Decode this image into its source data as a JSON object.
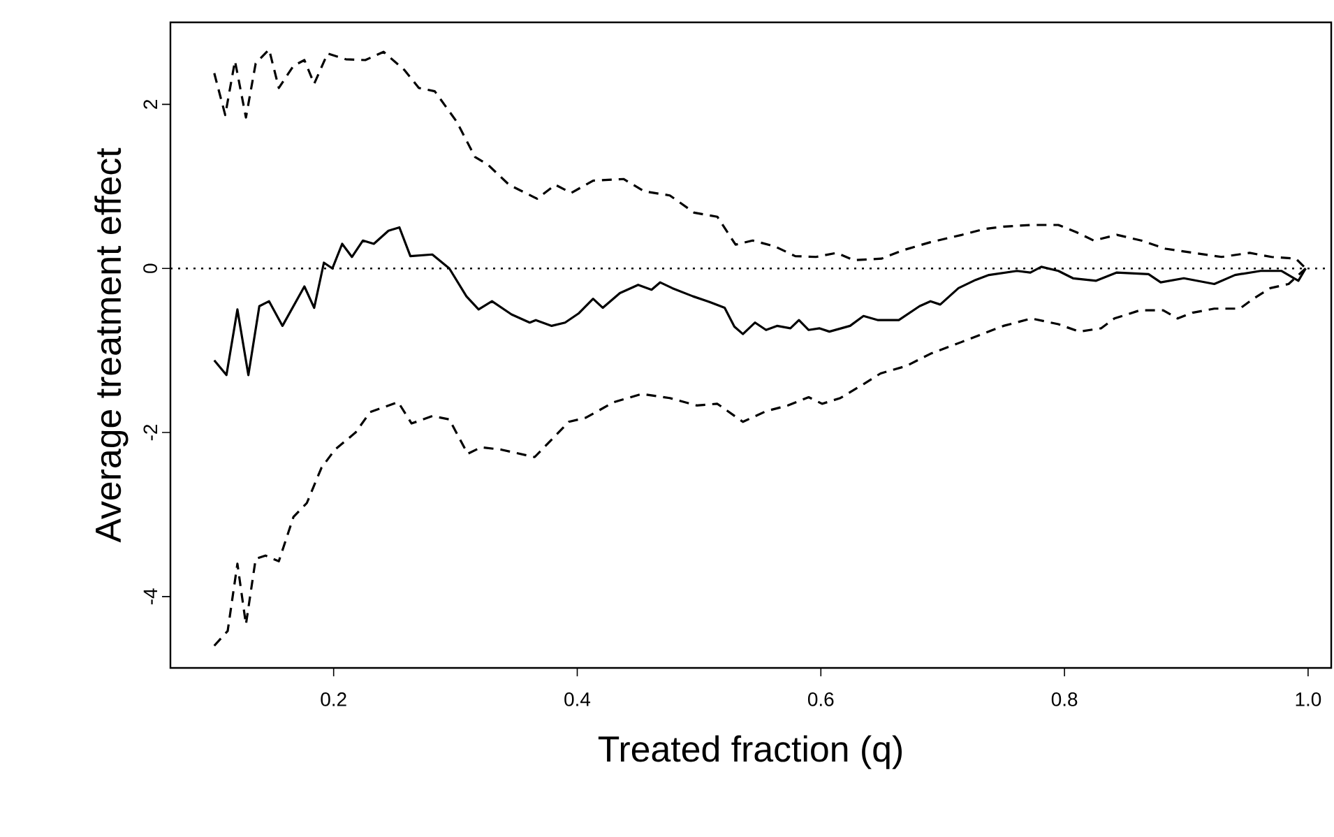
{
  "chart_data": {
    "type": "line",
    "xlabel": "Treated fraction (q)",
    "ylabel": "Average treatment effect",
    "xlim": [
      0.066,
      1.019
    ],
    "ylim": [
      -4.87,
      3.0
    ],
    "xticks": [
      0.2,
      0.4,
      0.6,
      0.8,
      {
        "value": 1,
        "label": "1.0"
      }
    ],
    "yticks": [
      -4,
      -2,
      0,
      2
    ],
    "ref_lines": [
      {
        "axis": "y",
        "value": 0,
        "line_style": "dotted",
        "color": "#000000"
      }
    ],
    "series": [
      {
        "color": "#000000",
        "line_style": "solid",
        "x": [
          0.102,
          0.112,
          0.121,
          0.13,
          0.139,
          0.147,
          0.158,
          0.176,
          0.184,
          0.192,
          0.199,
          0.207,
          0.215,
          0.224,
          0.233,
          0.245,
          0.254,
          0.263,
          0.281,
          0.295,
          0.309,
          0.319,
          0.33,
          0.346,
          0.361,
          0.366,
          0.379,
          0.39,
          0.401,
          0.413,
          0.421,
          0.435,
          0.45,
          0.461,
          0.468,
          0.478,
          0.495,
          0.507,
          0.521,
          0.529,
          0.536,
          0.546,
          0.555,
          0.564,
          0.575,
          0.582,
          0.59,
          0.599,
          0.607,
          0.624,
          0.635,
          0.647,
          0.664,
          0.681,
          0.69,
          0.698,
          0.713,
          0.727,
          0.738,
          0.761,
          0.772,
          0.781,
          0.795,
          0.807,
          0.826,
          0.843,
          0.869,
          0.879,
          0.898,
          0.923,
          0.94,
          0.961,
          0.978,
          0.992,
          0.998
        ],
        "values": [
          -1.12,
          -1.3,
          -0.5,
          -1.3,
          -0.46,
          -0.4,
          -0.7,
          -0.22,
          -0.48,
          0.07,
          0,
          0.3,
          0.14,
          0.34,
          0.3,
          0.46,
          0.5,
          0.15,
          0.17,
          0,
          -0.34,
          -0.5,
          -0.4,
          -0.56,
          -0.66,
          -0.63,
          -0.7,
          -0.66,
          -0.55,
          -0.37,
          -0.48,
          -0.3,
          -0.2,
          -0.26,
          -0.17,
          -0.24,
          -0.34,
          -0.4,
          -0.48,
          -0.71,
          -0.8,
          -0.66,
          -0.75,
          -0.7,
          -0.73,
          -0.63,
          -0.75,
          -0.73,
          -0.77,
          -0.7,
          -0.58,
          -0.63,
          -0.63,
          -0.46,
          -0.4,
          -0.44,
          -0.24,
          -0.14,
          -0.08,
          -0.03,
          -0.05,
          0.02,
          -0.03,
          -0.12,
          -0.15,
          -0.05,
          -0.07,
          -0.17,
          -0.12,
          -0.19,
          -0.08,
          -0.03,
          -0.03,
          -0.15,
          0
        ]
      },
      {
        "color": "#000000",
        "line_style": "dashed",
        "x": [
          0.102,
          0.111,
          0.119,
          0.128,
          0.136,
          0.147,
          0.155,
          0.167,
          0.176,
          0.184,
          0.195,
          0.21,
          0.226,
          0.241,
          0.258,
          0.27,
          0.283,
          0.301,
          0.316,
          0.327,
          0.344,
          0.367,
          0.382,
          0.395,
          0.413,
          0.438,
          0.455,
          0.476,
          0.496,
          0.515,
          0.53,
          0.544,
          0.562,
          0.579,
          0.596,
          0.613,
          0.627,
          0.65,
          0.667,
          0.69,
          0.716,
          0.734,
          0.75,
          0.773,
          0.795,
          0.81,
          0.824,
          0.843,
          0.863,
          0.883,
          0.906,
          0.929,
          0.952,
          0.97,
          0.99,
          0.998
        ],
        "values": [
          2.38,
          1.87,
          2.53,
          1.84,
          2.5,
          2.67,
          2.2,
          2.47,
          2.54,
          2.25,
          2.62,
          2.55,
          2.54,
          2.64,
          2.42,
          2.2,
          2.16,
          1.79,
          1.36,
          1.26,
          1.02,
          0.85,
          1.02,
          0.92,
          1.07,
          1.09,
          0.94,
          0.89,
          0.68,
          0.63,
          0.29,
          0.34,
          0.27,
          0.15,
          0.14,
          0.19,
          0.1,
          0.12,
          0.22,
          0.32,
          0.41,
          0.48,
          0.51,
          0.53,
          0.53,
          0.44,
          0.34,
          0.41,
          0.34,
          0.24,
          0.19,
          0.14,
          0.19,
          0.14,
          0.12,
          0
        ]
      },
      {
        "color": "#000000",
        "line_style": "dashed",
        "x": [
          0.102,
          0.113,
          0.121,
          0.128,
          0.136,
          0.144,
          0.155,
          0.167,
          0.178,
          0.19,
          0.201,
          0.218,
          0.23,
          0.253,
          0.264,
          0.281,
          0.295,
          0.31,
          0.321,
          0.338,
          0.365,
          0.382,
          0.393,
          0.407,
          0.43,
          0.453,
          0.476,
          0.498,
          0.515,
          0.536,
          0.555,
          0.573,
          0.59,
          0.601,
          0.616,
          0.635,
          0.649,
          0.67,
          0.69,
          0.715,
          0.736,
          0.75,
          0.773,
          0.795,
          0.812,
          0.83,
          0.841,
          0.862,
          0.881,
          0.893,
          0.905,
          0.923,
          0.944,
          0.955,
          0.969,
          0.984,
          0.998
        ],
        "values": [
          -4.6,
          -4.42,
          -3.6,
          -4.34,
          -3.54,
          -3.5,
          -3.57,
          -3.03,
          -2.86,
          -2.43,
          -2.21,
          -2.0,
          -1.75,
          -1.63,
          -1.89,
          -1.8,
          -1.84,
          -2.26,
          -2.18,
          -2.21,
          -2.3,
          -2.04,
          -1.87,
          -1.82,
          -1.63,
          -1.53,
          -1.58,
          -1.67,
          -1.65,
          -1.87,
          -1.74,
          -1.67,
          -1.57,
          -1.65,
          -1.58,
          -1.41,
          -1.28,
          -1.19,
          -1.04,
          -0.9,
          -0.78,
          -0.7,
          -0.61,
          -0.68,
          -0.77,
          -0.73,
          -0.61,
          -0.51,
          -0.51,
          -0.61,
          -0.54,
          -0.49,
          -0.49,
          -0.37,
          -0.24,
          -0.19,
          0
        ]
      }
    ]
  }
}
